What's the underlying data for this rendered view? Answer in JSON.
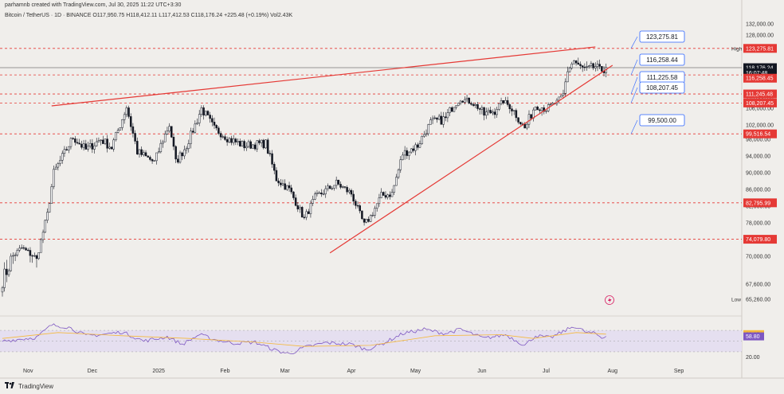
{
  "header": {
    "line1": "parhamnb created with TradingView.com, Jul 30, 2025 11:22 UTC+3:30",
    "line2": "Bitcoin / TetherUS · 1D · BINANCE  O117,950.75  H118,412.11  L117,412.53  C118,176.24  +225.48 (+0.19%)  Vol2.43K"
  },
  "footer": {
    "brand": "TradingView",
    "logo_icon": "tradingview-logo-icon"
  },
  "colors": {
    "background": "#f0eeeb",
    "up_candle": "#ffffff",
    "down_candle": "#131722",
    "trendline": "#e53935",
    "level_line": "#e53935",
    "callout_border": "#2962ff",
    "rsi_line": "#7e57c2",
    "rsi_ma": "#f5b93c",
    "rsi_band": "#e5dff0"
  },
  "chart_data": {
    "type": "candlestick",
    "symbol": "Bitcoin / TetherUS",
    "timeframe": "1D",
    "exchange": "BINANCE",
    "ohlc_current": {
      "open": 117950.75,
      "high": 118412.11,
      "low": 117412.53,
      "close": 118176.24,
      "change": 225.48,
      "change_pct": 0.19,
      "volume": "2.43K"
    },
    "x_range": [
      "2024-10-20",
      "2025-09-30"
    ],
    "y_range": [
      63000,
      133000
    ],
    "y_ticks": [
      "132,000.00",
      "128,000.00",
      "123,218.00",
      "118,176.24",
      "110,000.00",
      "106,000.00",
      "102,000.00",
      "98,000.00",
      "94,000.00",
      "90,000.00",
      "86,000.00",
      "82,000.00",
      "78,000.00",
      "74,000.00",
      "70,000.00",
      "67,600.00",
      "65,260.00"
    ],
    "y_tick_values": [
      132000,
      128000,
      123218,
      118176.24,
      110000,
      106000,
      102000,
      98000,
      94000,
      90000,
      86000,
      82000,
      78000,
      74000,
      70000,
      67600,
      65260
    ],
    "x_ticks": [
      "Nov",
      "Dec",
      "2025",
      "Feb",
      "Mar",
      "Apr",
      "May",
      "Jun",
      "Jul",
      "Aug",
      "Sep"
    ],
    "x_tick_dates": [
      "2024-11-01",
      "2024-12-01",
      "2025-01-01",
      "2025-02-01",
      "2025-03-01",
      "2025-04-01",
      "2025-05-01",
      "2025-06-01",
      "2025-07-01",
      "2025-08-01",
      "2025-09-01"
    ],
    "price_tags": [
      {
        "label": "123,275.81",
        "value": 123275.81,
        "style": "red"
      },
      {
        "label": "118,176.24",
        "value": 118176.24,
        "style": "dark"
      },
      {
        "label": "16:07:48",
        "value": 116800,
        "style": "dark"
      },
      {
        "label": "116,258.45",
        "value": 115400,
        "style": "red"
      },
      {
        "label": "111,245.48",
        "value": 111245.48,
        "style": "red"
      },
      {
        "label": "108,207.45",
        "value": 108207.45,
        "style": "red"
      },
      {
        "label": "99,516.54",
        "value": 99516.54,
        "style": "red"
      },
      {
        "label": "82,795.99",
        "value": 82795.99,
        "style": "red"
      },
      {
        "label": "74,079.80",
        "value": 74079.8,
        "style": "red"
      }
    ],
    "high_label": "High",
    "low_label": "Low",
    "horizontal_levels": [
      123275.81,
      116258.45,
      111245.48,
      108207.45,
      99516.54,
      82795.99,
      74079.8
    ],
    "current_price_line": 118176.24,
    "callouts": [
      {
        "label": "123,275.81",
        "value": 123275.81
      },
      {
        "label": "116,258.44",
        "value": 116258.44
      },
      {
        "label": "111,225.58",
        "value": 111225.58
      },
      {
        "label": "108,207.45",
        "value": 108207.45
      },
      {
        "label": "99,500.00",
        "value": 99500
      }
    ],
    "trendlines": [
      {
        "name": "upper",
        "from": [
          "2024-11-12",
          107000
        ],
        "to": [
          "2025-07-24",
          123800
        ]
      },
      {
        "name": "lower",
        "from": [
          "2025-03-22",
          70800
        ],
        "to": [
          "2025-08-01",
          118800
        ]
      }
    ],
    "close_path": [
      [
        "2024-10-20",
        67800
      ],
      [
        "2024-10-29",
        72000
      ],
      [
        "2024-11-05",
        69500
      ],
      [
        "2024-11-10",
        80000
      ],
      [
        "2024-11-13",
        90000
      ],
      [
        "2024-11-22",
        98500
      ],
      [
        "2024-11-28",
        95500
      ],
      [
        "2024-12-05",
        98000
      ],
      [
        "2024-12-10",
        96000
      ],
      [
        "2024-12-17",
        106500
      ],
      [
        "2024-12-22",
        95000
      ],
      [
        "2024-12-30",
        92500
      ],
      [
        "2025-01-06",
        102000
      ],
      [
        "2025-01-09",
        92500
      ],
      [
        "2025-01-14",
        96500
      ],
      [
        "2025-01-21",
        106000
      ],
      [
        "2025-01-27",
        101000
      ],
      [
        "2025-02-03",
        98000
      ],
      [
        "2025-02-10",
        96500
      ],
      [
        "2025-02-20",
        97000
      ],
      [
        "2025-02-25",
        88500
      ],
      [
        "2025-03-03",
        86000
      ],
      [
        "2025-03-10",
        79000
      ],
      [
        "2025-03-15",
        84000
      ],
      [
        "2025-03-25",
        87500
      ],
      [
        "2025-04-01",
        85000
      ],
      [
        "2025-04-07",
        77500
      ],
      [
        "2025-04-10",
        79500
      ],
      [
        "2025-04-15",
        84500
      ],
      [
        "2025-04-20",
        85000
      ],
      [
        "2025-04-25",
        94500
      ],
      [
        "2025-05-02",
        96500
      ],
      [
        "2025-05-08",
        102500
      ],
      [
        "2025-05-15",
        103500
      ],
      [
        "2025-05-22",
        110000
      ],
      [
        "2025-05-27",
        108500
      ],
      [
        "2025-06-02",
        104500
      ],
      [
        "2025-06-07",
        105500
      ],
      [
        "2025-06-11",
        109000
      ],
      [
        "2025-06-17",
        104500
      ],
      [
        "2025-06-21",
        101000
      ],
      [
        "2025-06-26",
        107000
      ],
      [
        "2025-07-01",
        106000
      ],
      [
        "2025-07-06",
        108500
      ],
      [
        "2025-07-09",
        111000
      ],
      [
        "2025-07-11",
        117500
      ],
      [
        "2025-07-14",
        120000
      ],
      [
        "2025-07-16",
        118500
      ],
      [
        "2025-07-20",
        117500
      ],
      [
        "2025-07-24",
        118500
      ],
      [
        "2025-07-26",
        117300
      ],
      [
        "2025-07-29",
        118200
      ]
    ],
    "rsi": {
      "ticks": [
        "62.97",
        "58.80",
        "20.00"
      ],
      "tick_values": [
        62.97,
        58.8,
        20
      ],
      "band": [
        30,
        70
      ],
      "range": [
        18,
        88
      ],
      "path": [
        [
          "2024-10-20",
          50
        ],
        [
          "2024-11-05",
          57
        ],
        [
          "2024-11-12",
          80
        ],
        [
          "2024-11-20",
          76
        ],
        [
          "2024-11-28",
          60
        ],
        [
          "2024-12-05",
          62
        ],
        [
          "2024-12-15",
          67
        ],
        [
          "2024-12-25",
          50
        ],
        [
          "2025-01-05",
          58
        ],
        [
          "2025-01-12",
          44
        ],
        [
          "2025-01-20",
          62
        ],
        [
          "2025-01-28",
          52
        ],
        [
          "2025-02-05",
          46
        ],
        [
          "2025-02-15",
          48
        ],
        [
          "2025-02-25",
          32
        ],
        [
          "2025-03-03",
          26
        ],
        [
          "2025-03-10",
          38
        ],
        [
          "2025-03-20",
          47
        ],
        [
          "2025-04-01",
          44
        ],
        [
          "2025-04-08",
          34
        ],
        [
          "2025-04-15",
          44
        ],
        [
          "2025-04-25",
          64
        ],
        [
          "2025-05-05",
          72
        ],
        [
          "2025-05-15",
          64
        ],
        [
          "2025-05-22",
          72
        ],
        [
          "2025-06-02",
          55
        ],
        [
          "2025-06-12",
          62
        ],
        [
          "2025-06-21",
          42
        ],
        [
          "2025-06-26",
          60
        ],
        [
          "2025-07-03",
          56
        ],
        [
          "2025-07-10",
          70
        ],
        [
          "2025-07-14",
          78
        ],
        [
          "2025-07-20",
          66
        ],
        [
          "2025-07-24",
          64
        ],
        [
          "2025-07-27",
          56
        ],
        [
          "2025-07-29",
          58.8
        ]
      ],
      "ma_path": [
        [
          "2024-10-20",
          55
        ],
        [
          "2024-11-15",
          66
        ],
        [
          "2024-12-15",
          60
        ],
        [
          "2025-01-15",
          55
        ],
        [
          "2025-02-15",
          48
        ],
        [
          "2025-03-10",
          40
        ],
        [
          "2025-04-10",
          42
        ],
        [
          "2025-05-10",
          60
        ],
        [
          "2025-06-10",
          62
        ],
        [
          "2025-06-25",
          55
        ],
        [
          "2025-07-15",
          66
        ],
        [
          "2025-07-29",
          62.97
        ]
      ]
    }
  }
}
